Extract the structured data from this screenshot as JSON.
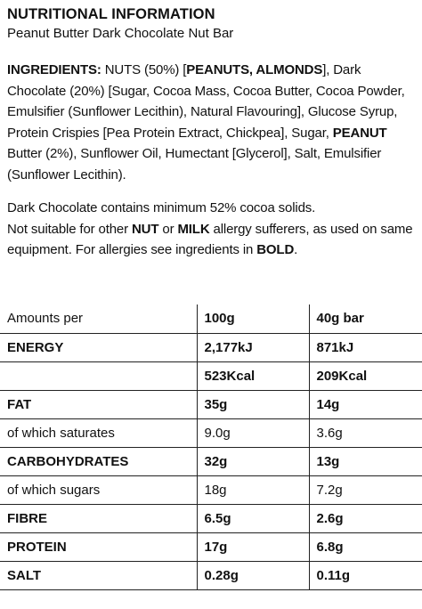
{
  "header": {
    "title": "NUTRITIONAL INFORMATION",
    "subtitle": "Peanut Butter Dark Chocolate Nut Bar"
  },
  "ingredients": {
    "label": "INGREDIENTS:",
    "t1": " NUTS (50%) [",
    "b1": "PEANUTS, ALMONDS",
    "t2": "], Dark Chocolate (20%) [Sugar, Cocoa Mass, Cocoa Butter, Cocoa Powder, Emulsifier (Sunflower Lecithin), Natural Flavouring], Glucose Syrup, Protein Crispies [Pea Protein Extract, Chickpea], Sugar, ",
    "b2": "PEANUT",
    "t3": " Butter (2%), Sunflower Oil, Humectant [Glycerol], Salt, Emulsifier (Sunflower Lecithin)."
  },
  "notes": {
    "line1": "Dark Chocolate contains minimum 52% cocoa solids.",
    "n1": "Not suitable for other ",
    "nut": "NUT",
    "n2": " or ",
    "milk": "MILK",
    "n3": " allergy sufferers, as used on same equipment. For allergies see ingredients in ",
    "bold": "BOLD",
    "n4": "."
  },
  "table": {
    "headers": [
      "Amounts per",
      "100g",
      "40g bar"
    ],
    "rows": [
      {
        "label": "ENERGY",
        "per100": "2,177kJ",
        "perBar": "871kJ"
      },
      {
        "label": "",
        "per100": "523Kcal",
        "perBar": "209Kcal"
      },
      {
        "label": "FAT",
        "per100": "35g",
        "perBar": "14g"
      },
      {
        "label": "of which saturates",
        "per100": "9.0g",
        "perBar": "3.6g"
      },
      {
        "label": "CARBOHYDRATES",
        "per100": "32g",
        "perBar": "13g"
      },
      {
        "label": "of which sugars",
        "per100": "18g",
        "perBar": "7.2g"
      },
      {
        "label": "FIBRE",
        "per100": "6.5g",
        "perBar": "2.6g"
      },
      {
        "label": "PROTEIN",
        "per100": "17g",
        "perBar": "6.8g"
      },
      {
        "label": "SALT",
        "per100": "0.28g",
        "perBar": "0.11g"
      }
    ]
  }
}
